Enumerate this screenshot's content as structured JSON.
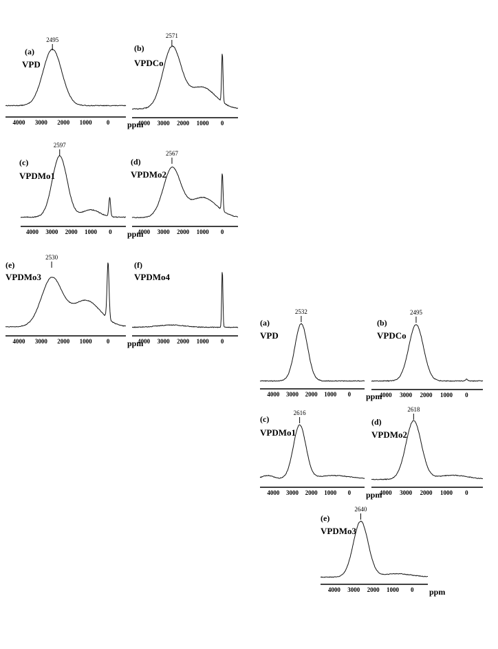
{
  "chart_data": [
    {
      "type": "line",
      "figure": 1,
      "panel_label": "(a)",
      "sample": "VPD",
      "peak_label": "2495",
      "x_ticks": [
        "4000",
        "3000",
        "2000",
        "1000",
        "0"
      ],
      "x_unit": "ppm",
      "xlim": [
        4600,
        -800
      ],
      "peaks": [
        {
          "center": 2495,
          "height": 1.0,
          "width": 420
        }
      ],
      "baseline": 0.08,
      "show_unit": true
    },
    {
      "type": "line",
      "figure": 1,
      "panel_label": "(b)",
      "sample": "VPDCo",
      "peak_label": "2571",
      "x_ticks": [
        "4000",
        "3000",
        "2000",
        "1000",
        "0"
      ],
      "x_unit": "",
      "xlim": [
        4600,
        -800
      ],
      "peaks": [
        {
          "center": 2571,
          "height": 1.0,
          "width": 460
        },
        {
          "center": 1050,
          "height": 0.36,
          "width": 700
        },
        {
          "center": 0,
          "height": 0.82,
          "width": 35
        }
      ],
      "baseline": 0.02,
      "show_unit": false
    },
    {
      "type": "line",
      "figure": 1,
      "panel_label": "(c)",
      "sample": "VPDMo1",
      "peak_label": "2597",
      "x_ticks": [
        "4000",
        "3000",
        "2000",
        "1000",
        "0"
      ],
      "x_unit": "ppm",
      "xlim": [
        4600,
        -800
      ],
      "peaks": [
        {
          "center": 2597,
          "height": 1.0,
          "width": 380
        },
        {
          "center": 1000,
          "height": 0.12,
          "width": 450
        },
        {
          "center": 30,
          "height": 0.32,
          "width": 45
        }
      ],
      "baseline": 0.05,
      "show_unit": true
    },
    {
      "type": "line",
      "figure": 1,
      "panel_label": "(d)",
      "sample": "VPDMo2",
      "peak_label": "2567",
      "x_ticks": [
        "4000",
        "3000",
        "2000",
        "1000",
        "0"
      ],
      "x_unit": "",
      "xlim": [
        4600,
        -800
      ],
      "peaks": [
        {
          "center": 2567,
          "height": 0.92,
          "width": 440
        },
        {
          "center": 1000,
          "height": 0.38,
          "width": 700
        },
        {
          "center": 0,
          "height": 0.72,
          "width": 35
        }
      ],
      "baseline": 0.05,
      "show_unit": false
    },
    {
      "type": "line",
      "figure": 1,
      "panel_label": "(e)",
      "sample": "VPDMo3",
      "peak_label": "2530",
      "x_ticks": [
        "4000",
        "3000",
        "2000",
        "1000",
        "0"
      ],
      "x_unit": "ppm",
      "xlim": [
        4600,
        -800
      ],
      "peaks": [
        {
          "center": 2530,
          "height": 0.82,
          "width": 460
        },
        {
          "center": 1000,
          "height": 0.45,
          "width": 650
        },
        {
          "center": 0,
          "height": 0.98,
          "width": 45
        }
      ],
      "baseline": 0.05,
      "show_unit": true
    },
    {
      "type": "line",
      "figure": 1,
      "panel_label": "(f)",
      "sample": "VPDMo4",
      "peak_label": "",
      "x_ticks": [
        "4000",
        "3000",
        "2000",
        "1000",
        "0"
      ],
      "x_unit": "",
      "xlim": [
        4600,
        -800
      ],
      "peaks": [
        {
          "center": 2600,
          "height": 0.04,
          "width": 700
        },
        {
          "center": 0,
          "height": 1.0,
          "width": 30
        }
      ],
      "baseline": 0.04,
      "show_unit": false
    },
    {
      "type": "line",
      "figure": 2,
      "panel_label": "(a)",
      "sample": "VPD",
      "peak_label": "2532",
      "x_ticks": [
        "4000",
        "3000",
        "2000",
        "1000",
        "0"
      ],
      "x_unit": "ppm",
      "xlim": [
        4700,
        -800
      ],
      "peaks": [
        {
          "center": 2532,
          "height": 1.0,
          "width": 330
        }
      ],
      "baseline": 0.03,
      "show_unit": true
    },
    {
      "type": "line",
      "figure": 2,
      "panel_label": "(b)",
      "sample": "VPDCo",
      "peak_label": "2495",
      "x_ticks": [
        "4000",
        "3000",
        "2000",
        "1000",
        "0"
      ],
      "x_unit": "",
      "xlim": [
        4700,
        -800
      ],
      "peaks": [
        {
          "center": 2495,
          "height": 1.0,
          "width": 360
        },
        {
          "center": 0,
          "height": 0.03,
          "width": 60
        }
      ],
      "baseline": 0.03,
      "show_unit": false
    },
    {
      "type": "line",
      "figure": 2,
      "panel_label": "(c)",
      "sample": "VPDMo1",
      "peak_label": "2616",
      "x_ticks": [
        "4000",
        "3000",
        "2000",
        "1000",
        "0"
      ],
      "x_unit": "ppm",
      "xlim": [
        4700,
        -800
      ],
      "peaks": [
        {
          "center": 2616,
          "height": 1.0,
          "width": 330
        },
        {
          "center": 4300,
          "height": 0.06,
          "width": 300
        },
        {
          "center": 800,
          "height": 0.06,
          "width": 800
        }
      ],
      "baseline": 0.03,
      "show_unit": true
    },
    {
      "type": "line",
      "figure": 2,
      "panel_label": "(d)",
      "sample": "VPDMo2",
      "peak_label": "2618",
      "x_ticks": [
        "4000",
        "3000",
        "2000",
        "1000",
        "0"
      ],
      "x_unit": "",
      "xlim": [
        4700,
        -800
      ],
      "peaks": [
        {
          "center": 2618,
          "height": 1.0,
          "width": 380
        },
        {
          "center": 700,
          "height": 0.07,
          "width": 800
        }
      ],
      "baseline": 0.04,
      "show_unit": false
    },
    {
      "type": "line",
      "figure": 2,
      "panel_label": "(e)",
      "sample": "VPDMo3",
      "peak_label": "2640",
      "x_ticks": [
        "4000",
        "3000",
        "2000",
        "1000",
        "0"
      ],
      "x_unit": "ppm",
      "xlim": [
        4700,
        -800
      ],
      "peaks": [
        {
          "center": 2640,
          "height": 1.0,
          "width": 380
        },
        {
          "center": 800,
          "height": 0.06,
          "width": 800
        }
      ],
      "baseline": 0.03,
      "show_unit": true
    }
  ]
}
